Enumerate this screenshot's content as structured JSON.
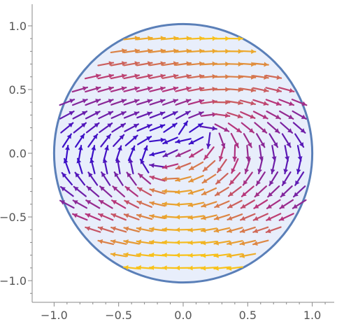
{
  "chart_data": {
    "type": "vector_field",
    "title": "",
    "xlabel": "",
    "ylabel": "",
    "xlim": [
      -1.17,
      1.17
    ],
    "ylim": [
      -1.17,
      1.17
    ],
    "x_ticks": [
      -1.0,
      -0.5,
      0.0,
      0.5,
      1.0
    ],
    "x_tick_labels": [
      "−1.0",
      "−0.5",
      "0.0",
      "0.5",
      "1.0"
    ],
    "y_ticks": [
      1.0,
      0.5,
      0.0,
      -0.5,
      -1.0
    ],
    "y_tick_labels": [
      "1.0",
      "0.5",
      "0.0",
      "−0.5",
      "−1.0"
    ],
    "grid": false,
    "legend": "none",
    "region": {
      "shape": "disk",
      "center": [
        0,
        0
      ],
      "radius": 1.0
    },
    "field_description": "Arrows flow right in the upper half and left in the lower half, with a clockwise-rotating source near (0.2, 0.1) and a counter-rotating center near (-0.2, -0.1); colored by magnitude (purple = slow, orange/yellow = fast).",
    "sample_spacing": 0.1,
    "colors": {
      "disk_fill": "#e8eefb",
      "disk_stroke": "#5a7fb8",
      "axis": "#888888",
      "slow_color": "#3c10c8",
      "mid_color": "#b8357a",
      "fast_color": "#f8c21a"
    }
  }
}
